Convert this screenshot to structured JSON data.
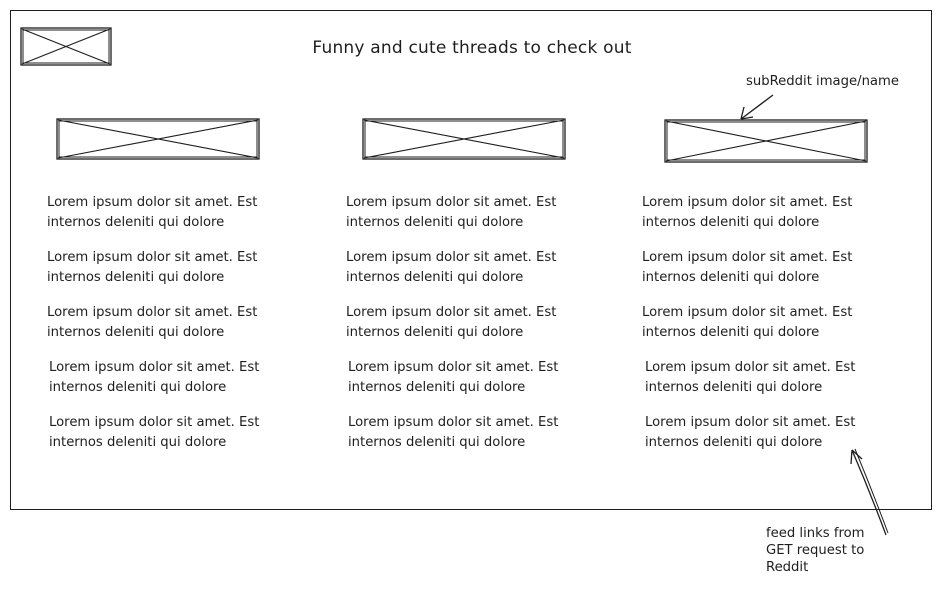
{
  "page": {
    "title": "Funny and cute threads to check out"
  },
  "logo_placeholder": "image-placeholder-icon",
  "columns": [
    {
      "image_placeholder": "image-placeholder-icon",
      "items": [
        {
          "line1": "Lorem ipsum dolor sit amet. Est",
          "line2": "internos deleniti qui dolore"
        },
        {
          "line1": "Lorem ipsum dolor sit amet. Est",
          "line2": "internos deleniti qui dolore"
        },
        {
          "line1": "Lorem ipsum dolor sit amet. Est",
          "line2": "internos deleniti qui dolore"
        },
        {
          "line1": "Lorem ipsum dolor sit amet. Est",
          "line2": "internos deleniti qui dolore"
        },
        {
          "line1": "Lorem ipsum dolor sit amet. Est",
          "line2": "internos deleniti qui dolore"
        }
      ]
    },
    {
      "image_placeholder": "image-placeholder-icon",
      "items": [
        {
          "line1": "Lorem ipsum dolor sit amet. Est",
          "line2": "internos deleniti qui dolore"
        },
        {
          "line1": "Lorem ipsum dolor sit amet. Est",
          "line2": "internos deleniti qui dolore"
        },
        {
          "line1": "Lorem ipsum dolor sit amet. Est",
          "line2": "internos deleniti qui dolore"
        },
        {
          "line1": "Lorem ipsum dolor sit amet. Est",
          "line2": "internos deleniti qui dolore"
        },
        {
          "line1": "Lorem ipsum dolor sit amet. Est",
          "line2": "internos deleniti qui dolore"
        }
      ]
    },
    {
      "image_placeholder": "image-placeholder-icon",
      "items": [
        {
          "line1": "Lorem ipsum dolor sit amet. Est",
          "line2": "internos deleniti qui dolore"
        },
        {
          "line1": "Lorem ipsum dolor sit amet. Est",
          "line2": "internos deleniti qui dolore"
        },
        {
          "line1": "Lorem ipsum dolor sit amet. Est",
          "line2": "internos deleniti qui dolore"
        },
        {
          "line1": "Lorem ipsum dolor sit amet. Est",
          "line2": "internos deleniti qui dolore"
        },
        {
          "line1": "Lorem ipsum dolor sit amet. Est",
          "line2": "internos deleniti qui dolore"
        }
      ]
    }
  ],
  "annotations": {
    "subreddit_note": "subReddit image/name",
    "feed_note": [
      "feed links from",
      "GET request to",
      "Reddit"
    ]
  },
  "colors": {
    "ink": "#1e1e1e",
    "background": "#ffffff"
  }
}
